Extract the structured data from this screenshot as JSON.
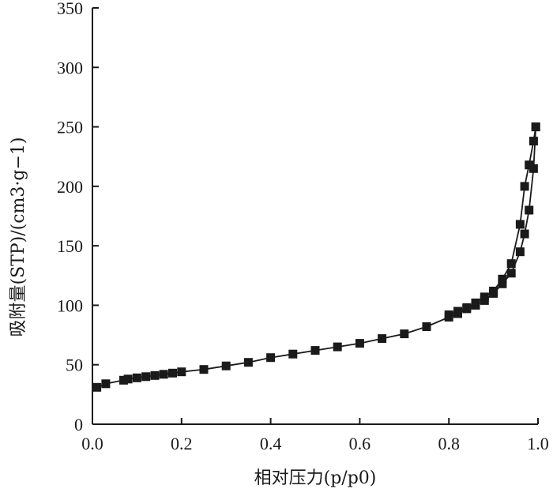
{
  "chart_data": {
    "type": "line",
    "xlabel": "相对压力(p/p0)",
    "ylabel": "吸附量(STP)/(cm3·g−1)",
    "xlim": [
      0,
      1.0
    ],
    "ylim": [
      0,
      350
    ],
    "x_ticks": [
      "0.0",
      "0.2",
      "0.4",
      "0.6",
      "0.8",
      "1.0"
    ],
    "y_ticks": [
      "0",
      "50",
      "100",
      "150",
      "200",
      "250",
      "300",
      "350"
    ],
    "grid": false,
    "legend": "none",
    "marker": "square",
    "color": "#1a1a1a",
    "series": [
      {
        "x": [
          0.01,
          0.03,
          0.07,
          0.08,
          0.1,
          0.12,
          0.14,
          0.16,
          0.18,
          0.2,
          0.25,
          0.3,
          0.35,
          0.4,
          0.45,
          0.5,
          0.55,
          0.6,
          0.65,
          0.7,
          0.75,
          0.8,
          0.82,
          0.84,
          0.86,
          0.88,
          0.9,
          0.92,
          0.94,
          0.96,
          0.97,
          0.98,
          0.99,
          0.995
        ],
        "y": [
          31,
          34,
          37,
          38,
          39,
          40,
          41,
          42,
          43,
          44,
          46,
          49,
          52,
          56,
          59,
          62,
          65,
          68,
          72,
          76,
          82,
          90,
          93,
          97,
          100,
          104,
          110,
          118,
          127,
          145,
          160,
          180,
          215,
          250
        ]
      },
      {
        "x": [
          0.995,
          0.99,
          0.98,
          0.97,
          0.96,
          0.94,
          0.92,
          0.9,
          0.88,
          0.86,
          0.84,
          0.82,
          0.8
        ],
        "y": [
          250,
          238,
          218,
          200,
          168,
          135,
          122,
          112,
          107,
          102,
          98,
          95,
          92
        ]
      }
    ]
  }
}
